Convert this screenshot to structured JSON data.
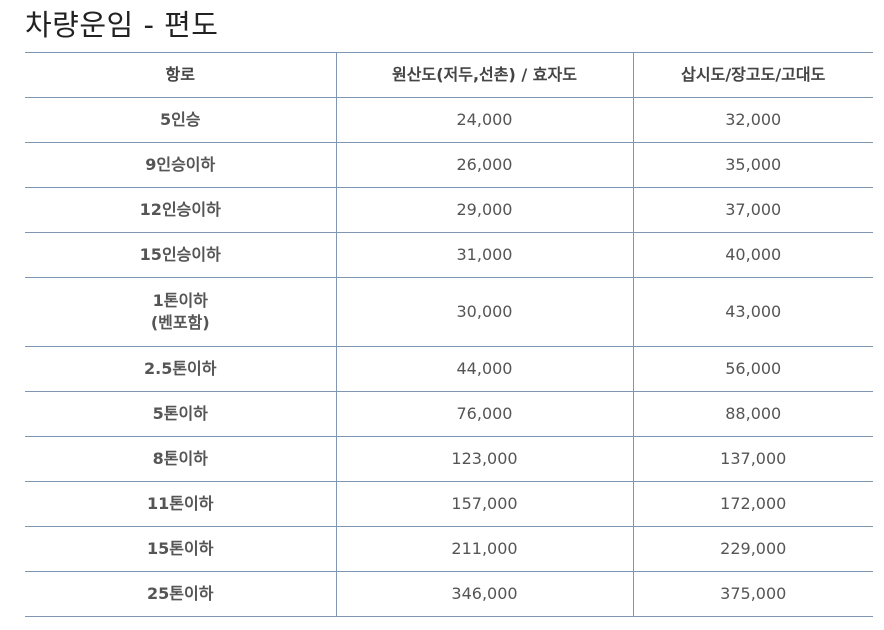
{
  "title": "차량운임 - 편도",
  "table": {
    "headers": [
      "항로",
      "원산도(저두,선촌) / 효자도",
      "삽시도/장고도/고대도"
    ],
    "rows": [
      {
        "route": [
          "5인승"
        ],
        "v1": "24,000",
        "v2": "32,000"
      },
      {
        "route": [
          "9인승이하"
        ],
        "v1": "26,000",
        "v2": "35,000"
      },
      {
        "route": [
          "12인승이하"
        ],
        "v1": "29,000",
        "v2": "37,000"
      },
      {
        "route": [
          "15인승이하"
        ],
        "v1": "31,000",
        "v2": "40,000"
      },
      {
        "route": [
          "1톤이하",
          "(벤포함)"
        ],
        "v1": "30,000",
        "v2": "43,000"
      },
      {
        "route": [
          "2.5톤이하"
        ],
        "v1": "44,000",
        "v2": "56,000"
      },
      {
        "route": [
          "5톤이하"
        ],
        "v1": "76,000",
        "v2": "88,000"
      },
      {
        "route": [
          "8톤이하"
        ],
        "v1": "123,000",
        "v2": "137,000"
      },
      {
        "route": [
          "11톤이하"
        ],
        "v1": "157,000",
        "v2": "172,000"
      },
      {
        "route": [
          "15톤이하"
        ],
        "v1": "211,000",
        "v2": "229,000"
      },
      {
        "route": [
          "25톤이하"
        ],
        "v1": "346,000",
        "v2": "375,000"
      }
    ]
  },
  "colors": {
    "border": "#7f97b3",
    "title": "#222222",
    "text": "#555555"
  }
}
